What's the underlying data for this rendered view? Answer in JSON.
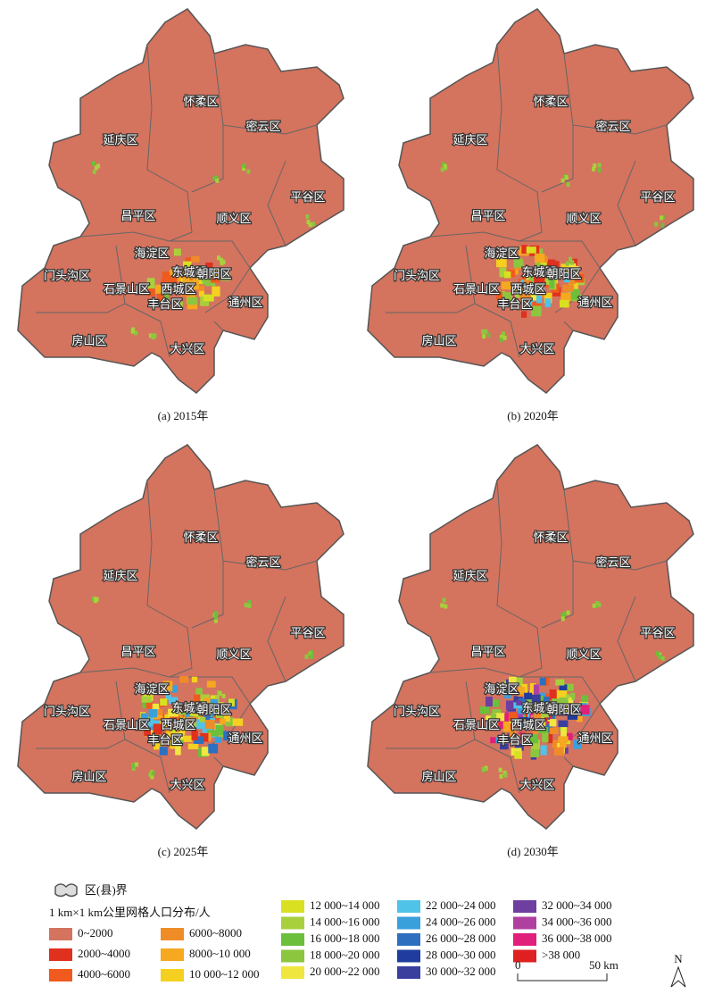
{
  "panels": [
    {
      "caption": "(a) 2015年"
    },
    {
      "caption": "(b) 2020年"
    },
    {
      "caption": "(c) 2025年"
    },
    {
      "caption": "(d) 2030年"
    }
  ],
  "districts": [
    "延庆区",
    "怀柔区",
    "密云区",
    "平谷区",
    "昌平区",
    "顺义区",
    "海淀区",
    "门头沟区",
    "东城区",
    "朝阳区",
    "石景山区",
    "西城区",
    "丰台区",
    "通州区",
    "房山区",
    "大兴区"
  ],
  "legend": {
    "boundary_label": "区(县)界",
    "title": "1 km×1 km公里网格人口分布/人",
    "classes": [
      {
        "label": "0~2000",
        "color": "#d4735e"
      },
      {
        "label": "2000~4000",
        "color": "#e0301e"
      },
      {
        "label": "4000~6000",
        "color": "#f05a1e"
      },
      {
        "label": "6000~8000",
        "color": "#f08c28"
      },
      {
        "label": "8000~10 000",
        "color": "#f5a820"
      },
      {
        "label": "10 000~12 000",
        "color": "#f5d020"
      },
      {
        "label": "12 000~14 000",
        "color": "#d9e021"
      },
      {
        "label": "14 000~16 000",
        "color": "#a8d03c"
      },
      {
        "label": "16 000~18 000",
        "color": "#6cbf3a"
      },
      {
        "label": "18 000~20 000",
        "color": "#8cc63f"
      },
      {
        "label": "20 000~22 000",
        "color": "#f0e640"
      },
      {
        "label": "22 000~24 000",
        "color": "#4fc3e8"
      },
      {
        "label": "24 000~26 000",
        "color": "#3aa0dc"
      },
      {
        "label": "26 000~28 000",
        "color": "#2e6fc0"
      },
      {
        "label": "28 000~30 000",
        "color": "#1f3c9e"
      },
      {
        "label": "30 000~32 000",
        "color": "#3a3f9e"
      },
      {
        "label": "32 000~34 000",
        "color": "#6e3ea0"
      },
      {
        "label": "34 000~36 000",
        "color": "#b040a0"
      },
      {
        "label": "36 000~38 000",
        "color": "#e0207a"
      },
      {
        "label": ">38 000",
        "color": "#e02020"
      }
    ]
  },
  "scale": {
    "labels": [
      "0",
      "50 km"
    ]
  },
  "north": "N"
}
